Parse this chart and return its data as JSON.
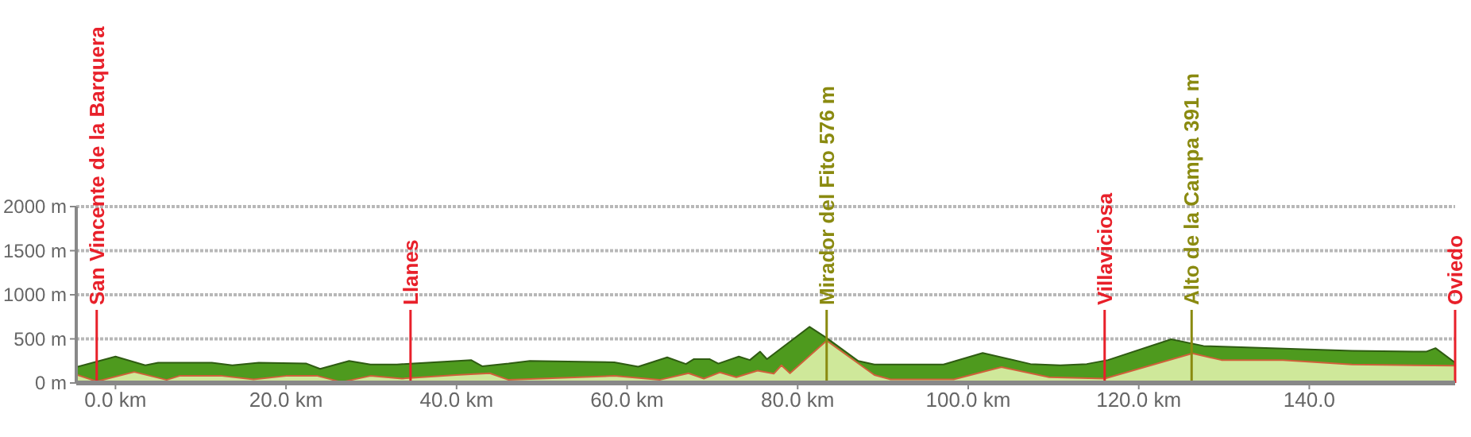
{
  "chart_data": {
    "type": "area",
    "xlim": [
      -4.6,
      157.1
    ],
    "ylim": [
      0,
      2000
    ],
    "xticks": [
      {
        "value": 0,
        "label": "0.0 km"
      },
      {
        "value": 20,
        "label": "20.0 km"
      },
      {
        "value": 40,
        "label": "40.0 km"
      },
      {
        "value": 60,
        "label": "60.0 km"
      },
      {
        "value": 80,
        "label": "80.0 km"
      },
      {
        "value": 100,
        "label": "100.0 km"
      },
      {
        "value": 120,
        "label": "120.0 km"
      },
      {
        "value": 140,
        "label": "140.0"
      }
    ],
    "yticks": [
      {
        "value": 0,
        "label": "0 m"
      },
      {
        "value": 500,
        "label": "500 m"
      },
      {
        "value": 1000,
        "label": "1000 m"
      },
      {
        "value": 1500,
        "label": "1500 m"
      },
      {
        "value": 2000,
        "label": "2000 m"
      }
    ],
    "grid": "y",
    "legend": false,
    "series": [
      {
        "color": "#4e9a1e",
        "x": [
          -4.6,
          0,
          3.5,
          5,
          11.3,
          13.7,
          16.8,
          22.4,
          24,
          27.4,
          29.9,
          33,
          41.7,
          43,
          46.1,
          48.6,
          58.5,
          61.3,
          64.7,
          66.9,
          67.8,
          69.7,
          70.7,
          73.1,
          74.4,
          75.6,
          76.4,
          81.4,
          83.4,
          87.1,
          89,
          97.1,
          101.7,
          107.3,
          110.8,
          113.9,
          116.4,
          123.8,
          127.6,
          135.6,
          145,
          153.7,
          154.8,
          157.1
        ],
        "values": [
          180,
          300,
          200,
          230,
          230,
          200,
          230,
          220,
          160,
          250,
          210,
          210,
          260,
          190,
          220,
          250,
          235,
          185,
          290,
          215,
          270,
          270,
          220,
          300,
          260,
          355,
          270,
          637,
          510,
          250,
          210,
          210,
          340,
          215,
          200,
          215,
          260,
          495,
          420,
          395,
          365,
          355,
          395,
          230
        ]
      },
      {
        "color": "#cfe89a",
        "x": [
          -4.6,
          -2.2,
          2.2,
          6,
          7.5,
          12.5,
          16.2,
          20,
          23.7,
          26.5,
          29.9,
          33.6,
          39.9,
          43.9,
          46.1,
          58.5,
          63.8,
          67.2,
          69,
          70.9,
          72.8,
          75.3,
          77.2,
          78.1,
          79.1,
          83.4,
          89,
          90.9,
          98.3,
          103.9,
          109.5,
          116,
          126.3,
          129.7,
          136.9,
          145,
          157.1
        ],
        "values": [
          95,
          18,
          125,
          35,
          80,
          80,
          40,
          80,
          80,
          10,
          80,
          50,
          90,
          110,
          35,
          80,
          35,
          110,
          50,
          120,
          65,
          140,
          105,
          200,
          110,
          480,
          90,
          40,
          40,
          180,
          65,
          50,
          335,
          260,
          260,
          210,
          195
        ]
      }
    ],
    "ref_lines": [
      {
        "axis": "x",
        "value": -2.2,
        "label": "San Vincente de la Barquera",
        "color": "#e8202a"
      },
      {
        "axis": "x",
        "value": 34.6,
        "label": "Llanes",
        "color": "#e8202a"
      },
      {
        "axis": "x",
        "value": 83.4,
        "label": "Mirador del Fito 576 m",
        "color": "#8a8a10"
      },
      {
        "axis": "x",
        "value": 116,
        "label": "Villaviciosa",
        "color": "#e8202a"
      },
      {
        "axis": "x",
        "value": 126.2,
        "label": "Alto de la Campa 391 m",
        "color": "#8a8a10"
      },
      {
        "axis": "x",
        "value": 157.1,
        "label": "Oviedo",
        "color": "#e8202a"
      }
    ]
  }
}
